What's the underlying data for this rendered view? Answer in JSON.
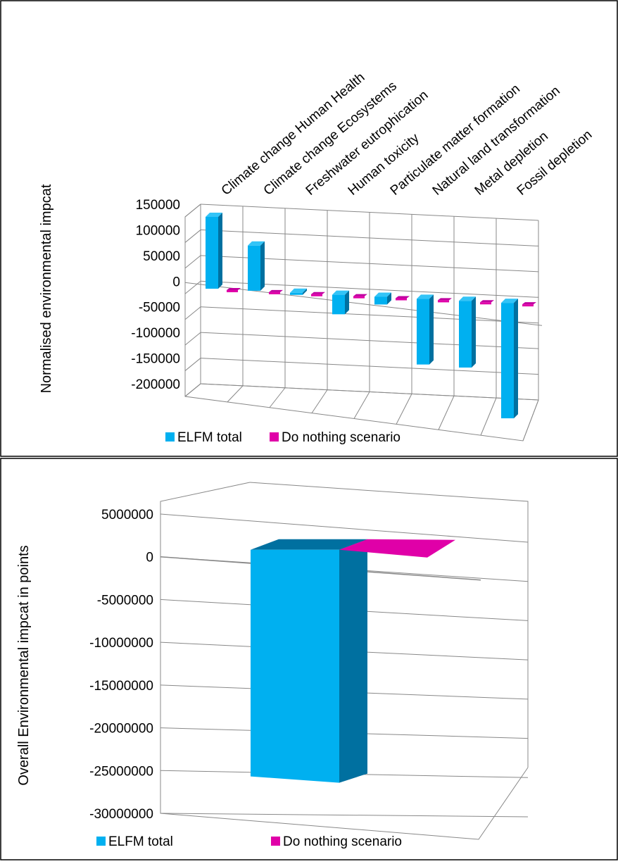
{
  "colors": {
    "elfm_front": "#00B0F0",
    "elfm_side": "#0070A0",
    "elfm_top": "#33C4F7",
    "nothing_front": "#E000A8",
    "nothing_side": "#8E0070",
    "nothing_top": "#C000A0",
    "grid": "#888888",
    "frame": "#000000"
  },
  "chart_data": [
    {
      "type": "bar",
      "title": "",
      "xlabel": "",
      "ylabel": "Normalised environmental impcat",
      "ylim": [
        -200000,
        150000
      ],
      "yticks": [
        "150000",
        "100000",
        "50000",
        "0",
        "-50000",
        "-100000",
        "-150000",
        "-200000"
      ],
      "categories": [
        "Climate change Human Health",
        "Climate change Ecosystems",
        "Freshwater eutrophication",
        "Human toxicity",
        "Particulate matter formation",
        "Natural land transformation",
        "Metal depletion",
        "Fossil depletion"
      ],
      "series": [
        {
          "name": "ELFM total",
          "values": [
            140000,
            88000,
            -3000,
            -38000,
            -15000,
            -128000,
            -130000,
            -225000
          ]
        },
        {
          "name": "Do nothing scenario",
          "values": [
            0,
            0,
            0,
            0,
            0,
            0,
            0,
            0
          ]
        }
      ],
      "legend": "bottom"
    },
    {
      "type": "bar",
      "title": "",
      "xlabel": "",
      "ylabel": "Overall Environmental impcat in points",
      "ylim": [
        -30000000,
        5000000
      ],
      "yticks": [
        "5000000",
        "0",
        "-5000000",
        "-10000000",
        "-15000000",
        "-20000000",
        "-25000000",
        "-30000000"
      ],
      "categories": [
        ""
      ],
      "series": [
        {
          "name": "ELFM total",
          "values": [
            -27000000
          ]
        },
        {
          "name": "Do nothing scenario",
          "values": [
            0
          ]
        }
      ],
      "legend": "bottom"
    }
  ]
}
